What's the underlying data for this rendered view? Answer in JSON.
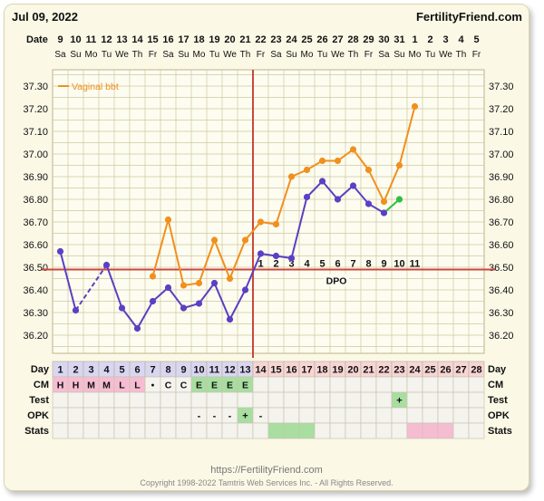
{
  "header": {
    "date": "Jul 09, 2022",
    "site": "FertilityFriend.com",
    "date_row_label": "Date"
  },
  "chart_data": {
    "type": "line",
    "ylim": [
      36.1,
      37.35
    ],
    "yticks": [
      "36.20",
      "36.30",
      "36.40",
      "36.50",
      "36.60",
      "36.70",
      "36.80",
      "36.90",
      "37.00",
      "37.10",
      "37.20",
      "37.30"
    ],
    "legend": "Vaginal bbt",
    "dates": [
      "9",
      "10",
      "11",
      "12",
      "13",
      "14",
      "15",
      "16",
      "17",
      "18",
      "19",
      "20",
      "21",
      "22",
      "23",
      "24",
      "25",
      "26",
      "27",
      "28",
      "29",
      "30",
      "31",
      "1",
      "2",
      "3",
      "4",
      "5"
    ],
    "weekdays": [
      "Sa",
      "Su",
      "Mo",
      "Tu",
      "We",
      "Th",
      "Fr",
      "Sa",
      "Su",
      "Mo",
      "Tu",
      "We",
      "Th",
      "Fr",
      "Sa",
      "Su",
      "Mo",
      "Tu",
      "We",
      "Th",
      "Fr",
      "Sa",
      "Su",
      "Mo",
      "Tu",
      "We",
      "Th",
      "Fr"
    ],
    "current_cycle": [
      36.57,
      36.31,
      null,
      36.51,
      36.32,
      36.23,
      36.35,
      36.41,
      36.32,
      36.34,
      36.43,
      36.27,
      36.4,
      36.56,
      36.55,
      36.54,
      36.81,
      36.88,
      36.8,
      36.86,
      36.78,
      36.74,
      36.8
    ],
    "bbt_overlay": [
      null,
      null,
      null,
      null,
      null,
      null,
      36.46,
      36.71,
      36.42,
      36.43,
      36.62,
      36.45,
      36.62,
      36.7,
      36.69,
      36.9,
      36.93,
      36.97,
      36.97,
      37.02,
      36.93,
      36.79,
      36.95,
      37.21
    ],
    "coverline": 36.49,
    "ovulation_day": 13,
    "dpo_label": "DPO",
    "dpo_numbers": [
      "1",
      "2",
      "3",
      "4",
      "5",
      "6",
      "7",
      "8",
      "9",
      "10",
      "11"
    ],
    "table": {
      "labels": {
        "day": "Day",
        "cm": "CM",
        "test": "Test",
        "opk": "OPK",
        "stats": "Stats"
      },
      "days": [
        "1",
        "2",
        "3",
        "4",
        "5",
        "6",
        "7",
        "8",
        "9",
        "10",
        "11",
        "12",
        "13",
        "14",
        "15",
        "16",
        "17",
        "18",
        "19",
        "20",
        "21",
        "22",
        "23",
        "24",
        "25",
        "26",
        "27",
        "28"
      ],
      "cm": [
        "H",
        "H",
        "M",
        "M",
        "L",
        "L",
        "•",
        "C",
        "C",
        "E",
        "E",
        "E",
        "E",
        "",
        "",
        "",
        "",
        "",
        "",
        "",
        "",
        "",
        "",
        "",
        "",
        "",
        "",
        ""
      ],
      "test": [
        "",
        "",
        "",
        "",
        "",
        "",
        "",
        "",
        "",
        "",
        "",
        "",
        "",
        "",
        "",
        "",
        "",
        "",
        "",
        "",
        "",
        "",
        "+",
        "",
        "",
        "",
        "",
        ""
      ],
      "opk": [
        "",
        "",
        "",
        "",
        "",
        "",
        "",
        "",
        "",
        "-",
        "-",
        "-",
        "+",
        "-",
        "",
        "",
        "",
        "",
        "",
        "",
        "",
        "",
        "",
        "",
        "",
        "",
        "",
        ""
      ]
    }
  },
  "colors": {
    "purple": "#5b3fc4",
    "orange": "#f0901e",
    "green": "#2fbf3f",
    "red_line": "#c9473e",
    "grid": "#cfc8a0",
    "pink_cell": "#f6bdd2",
    "green_cell": "#a8dea0",
    "lilac_header": "#d9d6f2",
    "pink_header": "#f8d5d5"
  },
  "footer": {
    "url": "https://FertilityFriend.com",
    "copyright": "Copyright 1998-2022 Tamtris Web Services Inc. - All Rights Reserved."
  }
}
